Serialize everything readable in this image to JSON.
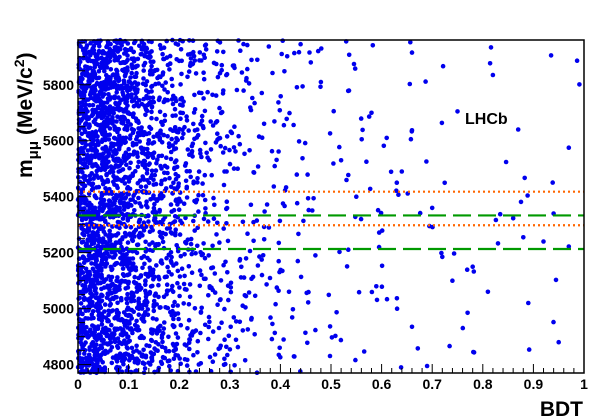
{
  "chart_data": {
    "type": "scatter",
    "title": "",
    "annotation": "LHCb",
    "xlabel": "BDT",
    "ylabel_main": "m",
    "ylabel_sub": "μμ",
    "ylabel_unit": "(MeV/c",
    "ylabel_unit_sup": "2",
    "ylabel_unit_close": ")",
    "xlim": [
      0,
      1
    ],
    "ylim": [
      4770,
      5960
    ],
    "x_ticks": [
      0,
      0.1,
      0.2,
      0.3,
      0.4,
      0.5,
      0.6,
      0.7,
      0.8,
      0.9,
      1
    ],
    "x_tick_labels": [
      "0",
      "0.1",
      "0.2",
      "0.3",
      "0.4",
      "0.5",
      "0.6",
      "0.7",
      "0.8",
      "0.9",
      "1"
    ],
    "y_ticks": [
      4800,
      5000,
      5200,
      5400,
      5600,
      5800
    ],
    "y_tick_labels": [
      "4800",
      "5000",
      "5200",
      "5400",
      "5600",
      "5800"
    ],
    "grid": false,
    "marker_color": "#0000ee",
    "lines": [
      {
        "name": "orange-dotted-upper",
        "y": 5418,
        "color": "#ff6600",
        "style": "dotted"
      },
      {
        "name": "orange-dotted-lower",
        "y": 5298,
        "color": "#ff6600",
        "style": "dotted"
      },
      {
        "name": "green-dashed-upper",
        "y": 5333,
        "color": "#009900",
        "style": "dashed"
      },
      {
        "name": "green-dashed-lower",
        "y": 5213,
        "color": "#009900",
        "style": "dashed"
      }
    ],
    "density_bands": [
      {
        "x": [
          0.0,
          0.05
        ],
        "count": 900
      },
      {
        "x": [
          0.05,
          0.1
        ],
        "count": 700
      },
      {
        "x": [
          0.1,
          0.15
        ],
        "count": 450
      },
      {
        "x": [
          0.15,
          0.2
        ],
        "count": 280
      },
      {
        "x": [
          0.2,
          0.25
        ],
        "count": 170
      },
      {
        "x": [
          0.25,
          0.3
        ],
        "count": 110
      },
      {
        "x": [
          0.3,
          0.35
        ],
        "count": 70
      },
      {
        "x": [
          0.35,
          0.4
        ],
        "count": 45
      },
      {
        "x": [
          0.4,
          0.5
        ],
        "count": 55
      },
      {
        "x": [
          0.5,
          0.6
        ],
        "count": 35
      },
      {
        "x": [
          0.6,
          0.7
        ],
        "count": 22
      },
      {
        "x": [
          0.7,
          0.8
        ],
        "count": 12
      },
      {
        "x": [
          0.8,
          0.9
        ],
        "count": 9
      },
      {
        "x": [
          0.9,
          1.0
        ],
        "count": 6
      }
    ],
    "points": [
      [
        0.53,
        5955
      ],
      [
        0.66,
        5915
      ],
      [
        0.82,
        5835
      ],
      [
        0.44,
        5945
      ],
      [
        0.75,
        5705
      ],
      [
        0.87,
        5640
      ],
      [
        0.97,
        5575
      ],
      [
        0.64,
        5490
      ],
      [
        0.57,
        5525
      ],
      [
        0.52,
        5530
      ],
      [
        0.7,
        5360
      ],
      [
        0.94,
        5340
      ],
      [
        0.86,
        5323
      ],
      [
        0.88,
        5255
      ],
      [
        0.92,
        5240
      ],
      [
        0.97,
        5222
      ],
      [
        0.83,
        5233
      ],
      [
        0.78,
        5150
      ],
      [
        0.74,
        5100
      ],
      [
        0.89,
        5020
      ],
      [
        0.77,
        4985
      ],
      [
        0.95,
        4880
      ],
      [
        0.69,
        4795
      ],
      [
        0.66,
        4935
      ],
      [
        0.63,
        5450
      ],
      [
        0.61,
        5610
      ],
      [
        0.48,
        5810
      ],
      [
        0.46,
        5880
      ],
      [
        0.72,
        5185
      ],
      [
        0.81,
        5060
      ],
      [
        0.58,
        5700
      ],
      [
        0.55,
        5400
      ]
    ]
  }
}
